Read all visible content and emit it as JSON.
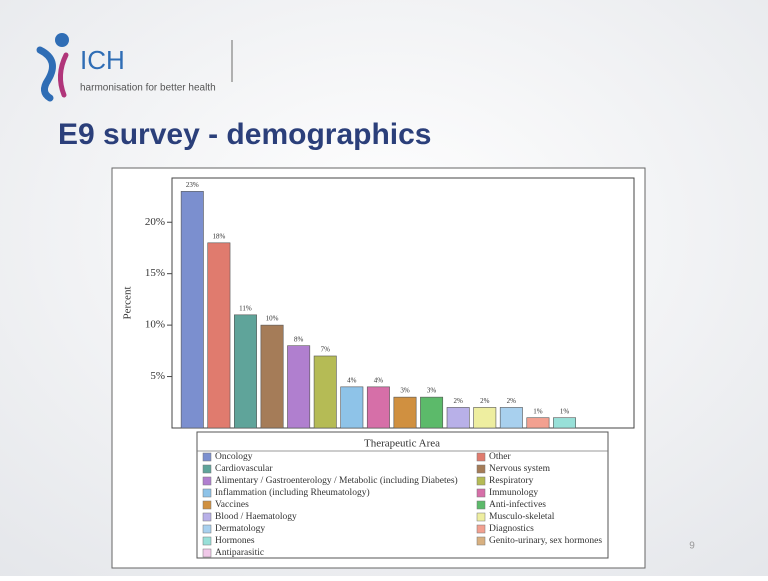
{
  "logo": {
    "name": "ICH",
    "tagline": "harmonisation for better health"
  },
  "title": "E9 survey - demographics",
  "page_number": "9",
  "chart_data": {
    "type": "bar",
    "ylabel": "Percent",
    "legend_title": "Therapeutic Area",
    "categories": [
      "Oncology",
      "Other",
      "Cardiovascular",
      "Nervous system",
      "Alimentary / Gastroenterology / Metabolic (including Diabetes)",
      "Respiratory",
      "Inflammation (including Rheumatology)",
      "Immunology",
      "Vaccines",
      "Anti-infectives",
      "Blood / Haematology",
      "Musculo-skeletal",
      "Dermatology",
      "Diagnostics",
      "Hormones",
      "Genito-urinary, sex hormones",
      "Antiparasitic"
    ],
    "colors": [
      "#7b8fcf",
      "#e07b6e",
      "#5fa49a",
      "#a57c58",
      "#b07fcf",
      "#b5bb55",
      "#8ec3e8",
      "#d66fa8",
      "#d09040",
      "#5cba6a",
      "#b8b0e8",
      "#eeeea0",
      "#a8d0ee",
      "#f2a090",
      "#98e0d8",
      "#d8b080",
      "#f0c8e8"
    ],
    "values": [
      23,
      18,
      11,
      10,
      8,
      7,
      4,
      4,
      3,
      3,
      2,
      2,
      2,
      1,
      1,
      null,
      null
    ],
    "value_labels": [
      "23%",
      "18%",
      "11%",
      "10%",
      "8%",
      "7%",
      "4%",
      "4%",
      "3%",
      "3%",
      "2%",
      "2%",
      "2%",
      "1%",
      "1%",
      null,
      null
    ],
    "ylim": [
      0,
      24.3
    ],
    "yticks": [
      {
        "value": 5,
        "label": "5%"
      },
      {
        "value": 10,
        "label": "10%"
      },
      {
        "value": 15,
        "label": "15%"
      },
      {
        "value": 20,
        "label": "20%"
      }
    ],
    "legend_position": "below"
  }
}
